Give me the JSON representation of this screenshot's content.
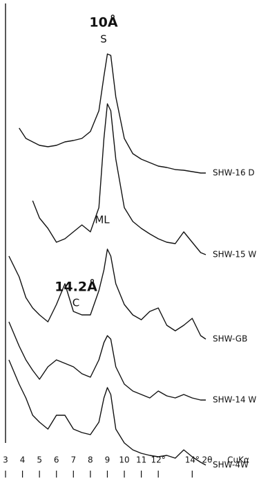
{
  "chart_data": {
    "type": "line",
    "x": [
      3.2,
      3.8,
      4.2,
      4.6,
      5,
      5.5,
      6,
      6.5,
      7,
      7.5,
      8,
      8.5,
      8.8,
      9,
      9.2,
      9.5,
      10,
      10.5,
      11,
      11.5,
      12,
      12.5,
      13,
      13.5,
      14,
      14.5,
      14.8
    ],
    "series": [
      {
        "name": "SHW-16 D",
        "color": "#111111",
        "values": [
          null,
          65,
          50,
          45,
          40,
          38,
          40,
          45,
          47,
          50,
          60,
          90,
          140,
          172,
          170,
          110,
          50,
          28,
          20,
          15,
          10,
          8,
          5,
          4,
          2,
          0,
          0
        ]
      },
      {
        "name": "SHW-15 W",
        "color": "#111111",
        "values": [
          null,
          null,
          null,
          78,
          53,
          38,
          18,
          23,
          33,
          43,
          33,
          68,
          168,
          218,
          208,
          138,
          68,
          48,
          38,
          30,
          23,
          18,
          16,
          33,
          18,
          3,
          0
        ]
      },
      {
        "name": "SHW-GB",
        "color": "#111111",
        "values": [
          120,
          90,
          60,
          45,
          35,
          25,
          50,
          80,
          40,
          35,
          35,
          70,
          100,
          130,
          120,
          80,
          50,
          35,
          28,
          40,
          45,
          20,
          12,
          20,
          30,
          5,
          0
        ]
      },
      {
        "name": "SHW-14 W",
        "color": "#111111",
        "values": [
          113,
          78,
          58,
          43,
          30,
          48,
          58,
          53,
          48,
          38,
          33,
          58,
          83,
          93,
          88,
          48,
          23,
          13,
          8,
          3,
          13,
          6,
          3,
          8,
          3,
          0,
          0
        ]
      },
      {
        "name": "SHW-4W",
        "color": "#111111",
        "values": [
          152,
          117,
          97,
          72,
          62,
          52,
          72,
          72,
          52,
          47,
          44,
          62,
          97,
          112,
          102,
          52,
          32,
          22,
          17,
          14,
          12,
          14,
          10,
          22,
          12,
          4,
          0
        ]
      }
    ],
    "xlim": [
      3,
      14.8
    ],
    "xticks": [
      3,
      4,
      5,
      6,
      7,
      8,
      9,
      10,
      11,
      {
        "value": 12,
        "label": "12°"
      },
      {
        "value": 14,
        "label": "14°"
      }
    ],
    "xlabel": "2θ",
    "radiation": "CuKα",
    "annotations": [
      "10Å",
      "S",
      "ML",
      "14.2Å",
      "C"
    ]
  }
}
